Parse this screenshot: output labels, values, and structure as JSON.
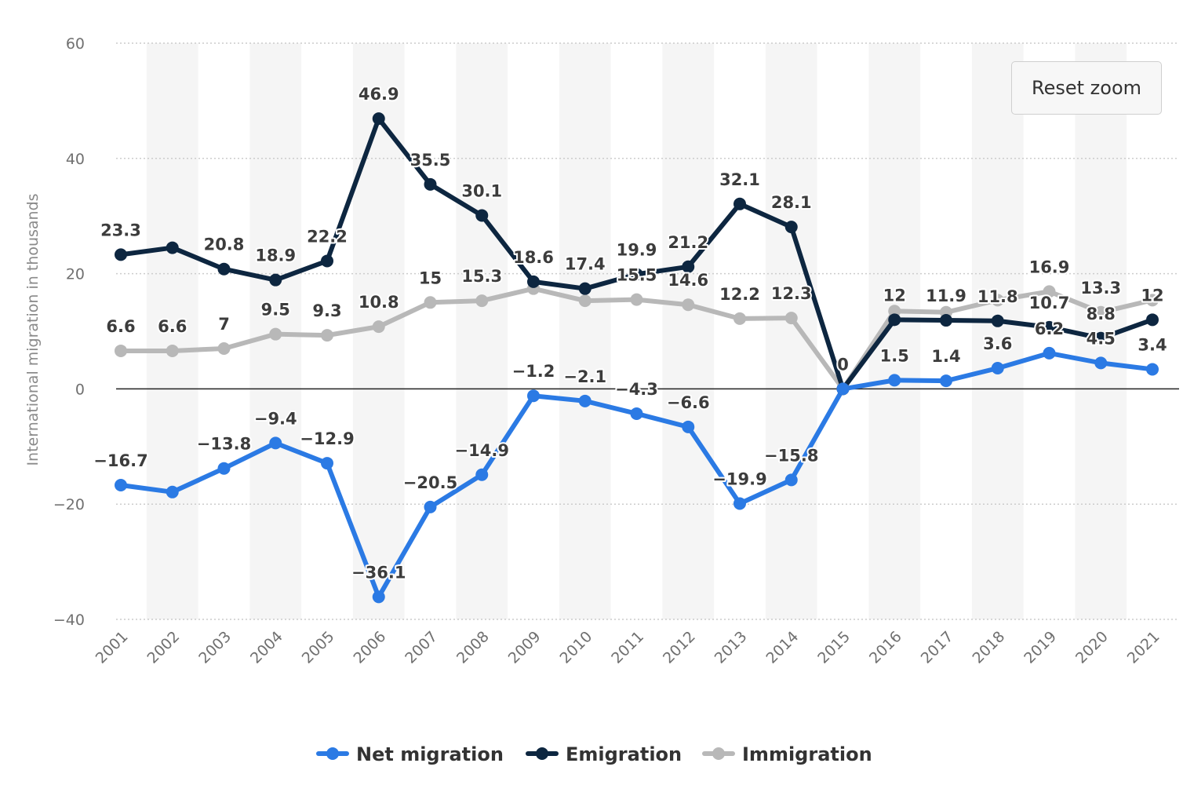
{
  "reset_button": {
    "label": "Reset zoom"
  },
  "chart_data": {
    "type": "line",
    "title": "",
    "xlabel": "",
    "ylabel": "International migration in thousands",
    "ylim": [
      -40,
      60
    ],
    "yticks": [
      -40,
      -20,
      0,
      20,
      40,
      60
    ],
    "ytick_labels": [
      "−40",
      "−20",
      "0",
      "20",
      "40",
      "60"
    ],
    "grid": true,
    "legend_position": "bottom-center",
    "categories": [
      "2001",
      "2002",
      "2003",
      "2004",
      "2005",
      "2006",
      "2007",
      "2008",
      "2009",
      "2010",
      "2011",
      "2012",
      "2013",
      "2014",
      "2015",
      "2016",
      "2017",
      "2018",
      "2019",
      "2020",
      "2021"
    ],
    "series": [
      {
        "name": "Net migration",
        "color": "#2b7ae4",
        "values": [
          -16.7,
          -17.9,
          -13.8,
          -9.4,
          -12.9,
          -36.1,
          -20.5,
          -14.9,
          -1.2,
          -2.1,
          -4.3,
          -6.6,
          -19.9,
          -15.8,
          0,
          1.5,
          1.4,
          3.6,
          6.2,
          4.5,
          3.4
        ],
        "labels": [
          "−16.7",
          "",
          "−13.8",
          "−9.4",
          "−12.9",
          "−36.1",
          "−20.5",
          "−14.9",
          "−1.2",
          "−2.1",
          "−4.3",
          "−6.6",
          "−19.9",
          "−15.8",
          "",
          "1.5",
          "1.4",
          "3.6",
          "6.2",
          "4.5",
          "3.4"
        ]
      },
      {
        "name": "Emigration",
        "color": "#0d2640",
        "values": [
          23.3,
          24.5,
          20.8,
          18.9,
          22.2,
          46.9,
          35.5,
          30.1,
          18.6,
          17.4,
          19.9,
          21.2,
          32.1,
          28.1,
          0,
          12,
          11.9,
          11.8,
          10.7,
          8.8,
          12
        ],
        "labels": [
          "23.3",
          "",
          "20.8",
          "18.9",
          "22.2",
          "46.9",
          "35.5",
          "30.1",
          "18.6",
          "17.4",
          "19.9",
          "21.2",
          "32.1",
          "28.1",
          "0",
          "12",
          "11.9",
          "11.8",
          "10.7",
          "8.8",
          "12"
        ]
      },
      {
        "name": "Immigration",
        "color": "#b8b8b8",
        "values": [
          6.6,
          6.6,
          7,
          9.5,
          9.3,
          10.8,
          15,
          15.3,
          17.4,
          15.3,
          15.5,
          14.6,
          12.2,
          12.3,
          0,
          13.5,
          13.3,
          15.4,
          16.9,
          13.3,
          15.4
        ],
        "labels": [
          "6.6",
          "6.6",
          "7",
          "9.5",
          "9.3",
          "10.8",
          "15",
          "15.3",
          "",
          "",
          "15.5",
          "14.6",
          "12.2",
          "12.3",
          "",
          "",
          "",
          "",
          "16.9",
          "13.3",
          ""
        ]
      }
    ]
  }
}
